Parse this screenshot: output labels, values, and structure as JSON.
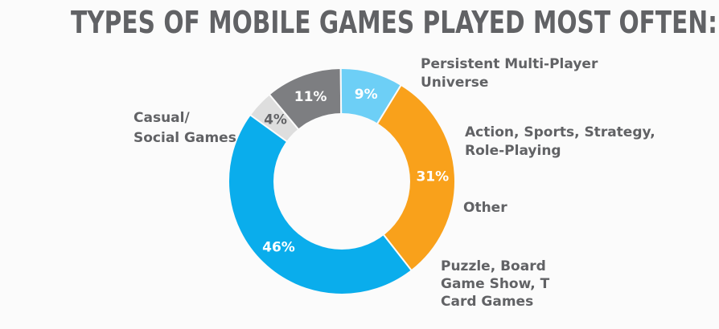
{
  "chart_data": {
    "type": "pie",
    "variant": "donut",
    "title": "TYPES OF MOBILE GAMES PLAYED MOST OFTEN:",
    "slices": [
      {
        "label": "Persistent Multi-Player Universe",
        "label_lines": [
          "Persistent Multi-Player",
          "Universe"
        ],
        "value": 4,
        "display": "4%",
        "color": "#dedede",
        "text_color": "#616265"
      },
      {
        "label": "Action, Sports, Strategy, Role-Playing",
        "label_lines": [
          "Action, Sports, Strategy,",
          "Role-Playing"
        ],
        "value": 11,
        "display": "11%",
        "color": "#7d7e81",
        "text_color": "#ffffff"
      },
      {
        "label": "Other",
        "label_lines": [
          "Other"
        ],
        "value": 9,
        "display": "9%",
        "color": "#6dcff6",
        "text_color": "#ffffff"
      },
      {
        "label": "Puzzle, Board, Game Show, Trivia, Card Games",
        "label_lines": [
          "Puzzle, Board",
          "Game Show, T",
          "Card Games"
        ],
        "value": 31,
        "display": "31%",
        "color": "#f9a11b",
        "text_color": "#ffffff"
      },
      {
        "label": "Casual/ Social Games",
        "label_lines": [
          "Casual/",
          "Social Games"
        ],
        "value": 46,
        "display": "46%",
        "color": "#0aadec",
        "text_color": "#ffffff"
      }
    ]
  }
}
